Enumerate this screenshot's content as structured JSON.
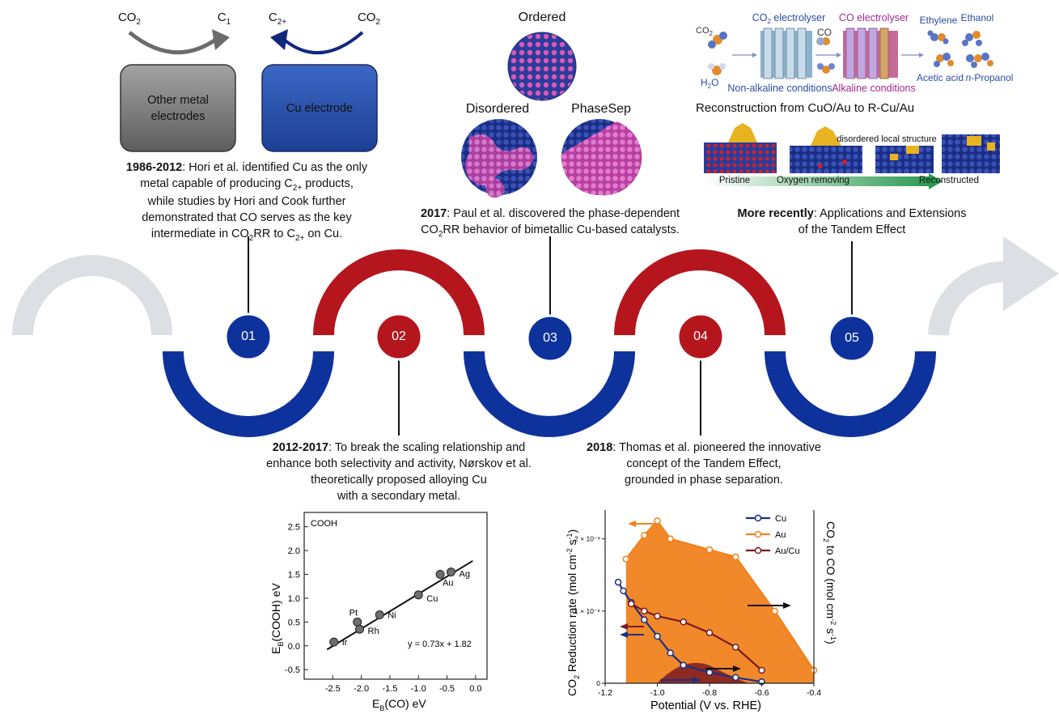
{
  "top_left": {
    "co2_left": "CO",
    "c1": "C",
    "c2plus": "C",
    "co2_right": "CO",
    "sub_2": "2",
    "sub_1": "1",
    "sub_2plus": "2+",
    "box_other": "Other metal electrodes",
    "box_cu": "Cu electrode"
  },
  "milestones": [
    {
      "num": "01",
      "year": "1986-2012",
      "text_a": ": Hori et al. identified Cu as the only",
      "text_b": "metal capable of producing C",
      "text_b_sub": "2+",
      "text_b_end": " products,",
      "text_c": "while studies by Hori and Cook further",
      "text_d": "demonstrated that CO serves as the key",
      "text_e": "intermediate in CO",
      "text_e_sub": "2",
      "text_e_mid": "RR to C",
      "text_e_sub2": "2+",
      "text_e_end": " on Cu."
    },
    {
      "num": "02",
      "year": "2012-2017",
      "text_a": ": To break the scaling relationship and",
      "text_b": "enhance both selectivity and activity, Nørskov et al.",
      "text_c": "theoretically proposed alloying Cu",
      "text_d": "with a secondary metal."
    },
    {
      "num": "03",
      "year": "2017",
      "text_a": ": Paul et al. discovered the phase-dependent",
      "text_b": "CO",
      "text_b_sub": "2",
      "text_b_end": "RR behavior of bimetallic Cu-based catalysts."
    },
    {
      "num": "04",
      "year": "2018",
      "text_a": ": Thomas et al. pioneered the innovative",
      "text_b": "concept of the Tandem Effect,",
      "text_c": "grounded in phase separation."
    },
    {
      "num": "05",
      "year": "More recently",
      "text_a": ": Applications and Extensions",
      "text_b": "of the Tandem Effect"
    }
  ],
  "nanoparticles": {
    "ordered": "Ordered",
    "disordered": "Disordered",
    "phasesep": "PhaseSep"
  },
  "top_right": {
    "co2": "CO",
    "co2_sub": "2",
    "h2o_a": "H",
    "h2o_sub": "2",
    "h2o_b": "O",
    "co2_electrolyser_a": "CO",
    "co2_electrolyser_sub": "2",
    "co2_electrolyser_b": " electrolyser",
    "co_electrolyser": "CO electrolyser",
    "co": "CO",
    "non_alkaline": "Non-alkaline conditions",
    "alkaline": "Alkaline conditions",
    "ethylene": "Ethylene",
    "ethanol": "Ethanol",
    "acetic": "Acetic acid",
    "propanol_italic": "n",
    "propanol": "-Propanol",
    "recon_title": "Reconstruction from CuO/Au to R-Cu/Au",
    "disordered_local": "disordered local structure",
    "pristine": "Pristine",
    "oxygen_removing": "Oxygen removing",
    "reconstructed": "Reconstructed"
  },
  "chart_data": [
    {
      "type": "scatter",
      "title": "",
      "annotation_top": "COOH",
      "xlabel": "E",
      "xlabel_sub": "B",
      "xlabel_end": "(CO) eV",
      "ylabel": "E",
      "ylabel_sub": "B",
      "ylabel_end": "(COOH) eV",
      "xlim": [
        -3.0,
        0.2
      ],
      "ylim": [
        -0.7,
        2.8
      ],
      "xticks": [
        "-2.5",
        "-2.0",
        "-1.5",
        "-1.0",
        "-0.5",
        "0.0"
      ],
      "xtick_values": [
        -2.5,
        -2.0,
        -1.5,
        -1.0,
        -0.5,
        0.0
      ],
      "yticks": [
        "-0.5",
        "0.0",
        "0.5",
        "1.0",
        "1.5",
        "2.0",
        "2.5"
      ],
      "ytick_values": [
        -0.5,
        0.0,
        0.5,
        1.0,
        1.5,
        2.0,
        2.5
      ],
      "points": [
        {
          "label": "Ir",
          "x": -2.48,
          "y": 0.08
        },
        {
          "label": "Pt",
          "x": -2.07,
          "y": 0.5
        },
        {
          "label": "Rh",
          "x": -2.03,
          "y": 0.35
        },
        {
          "label": "Ni",
          "x": -1.68,
          "y": 0.65
        },
        {
          "label": "Cu",
          "x": -1.0,
          "y": 1.07
        },
        {
          "label": "Au",
          "x": -0.62,
          "y": 1.5
        },
        {
          "label": "Ag",
          "x": -0.43,
          "y": 1.55
        }
      ],
      "fit": {
        "slope": 0.73,
        "intercept": 1.82,
        "x_from": -2.6,
        "x_to": -0.05
      },
      "equation": "y = 0.73x + 1.82"
    },
    {
      "type": "line",
      "title": "",
      "xlabel": "Potential (V vs. RHE)",
      "ylabel_left_a": "CO",
      "ylabel_left_sub": "2",
      "ylabel_left_b": " Reduction rate (mol cm",
      "ylabel_left_sup": "-2",
      "ylabel_left_c": " s",
      "ylabel_left_sup2": "-1",
      "ylabel_left_d": ")",
      "ylabel_right_a": "CO",
      "ylabel_right_sub": "2",
      "ylabel_right_b": " to CO (mol cm",
      "ylabel_right_sup": "-2",
      "ylabel_right_c": " s",
      "ylabel_right_sup2": "-1",
      "ylabel_right_d": ")",
      "xlim": [
        -1.2,
        -0.4
      ],
      "ylim": [
        0,
        2.4e-08
      ],
      "xticks": [
        "-1.2",
        "-1.0",
        "-0.8",
        "-0.6",
        "-0.4"
      ],
      "xtick_values": [
        -1.2,
        -1.0,
        -0.8,
        -0.6,
        -0.4
      ],
      "yticks": [
        "0",
        "1 × 10⁻⁸",
        "2 × 10⁻⁸"
      ],
      "ytick_values": [
        0,
        1e-08,
        2e-08
      ],
      "legend": "top-right",
      "series": [
        {
          "name": "Cu",
          "color": "#1f2f80",
          "x": [
            -1.15,
            -1.13,
            -1.1,
            -1.05,
            -1.0,
            -0.95,
            -0.9,
            -0.8,
            -0.7,
            -0.6
          ],
          "y": [
            1.4e-08,
            1.28e-08,
            1.12e-08,
            8.8e-09,
            6.5e-09,
            4.2e-09,
            2.5e-09,
            1.5e-09,
            8e-10,
            2e-10
          ]
        },
        {
          "name": "Au",
          "color": "#f0821e",
          "x": [
            -1.12,
            -1.05,
            -1.0,
            -0.95,
            -0.8,
            -0.7,
            -0.55,
            -0.4
          ],
          "y": [
            1.72e-08,
            2.05e-08,
            2.25e-08,
            2e-08,
            1.85e-08,
            1.75e-08,
            1e-08,
            1.8e-09
          ]
        },
        {
          "name": "Au/Cu",
          "color": "#7a1a22",
          "x": [
            -1.1,
            -1.05,
            -1.0,
            -0.9,
            -0.8,
            -0.7,
            -0.6
          ],
          "y": [
            1.1e-08,
            1e-08,
            9.3e-09,
            8.5e-09,
            7e-09,
            5e-09,
            1.8e-09
          ]
        }
      ]
    }
  ],
  "colors": {
    "red": "#b5161e",
    "blue": "#0e329c",
    "grey_arrow": "#dcdfe3",
    "cu_box": "#2c55b0",
    "other_box": "#7b7b7b"
  }
}
